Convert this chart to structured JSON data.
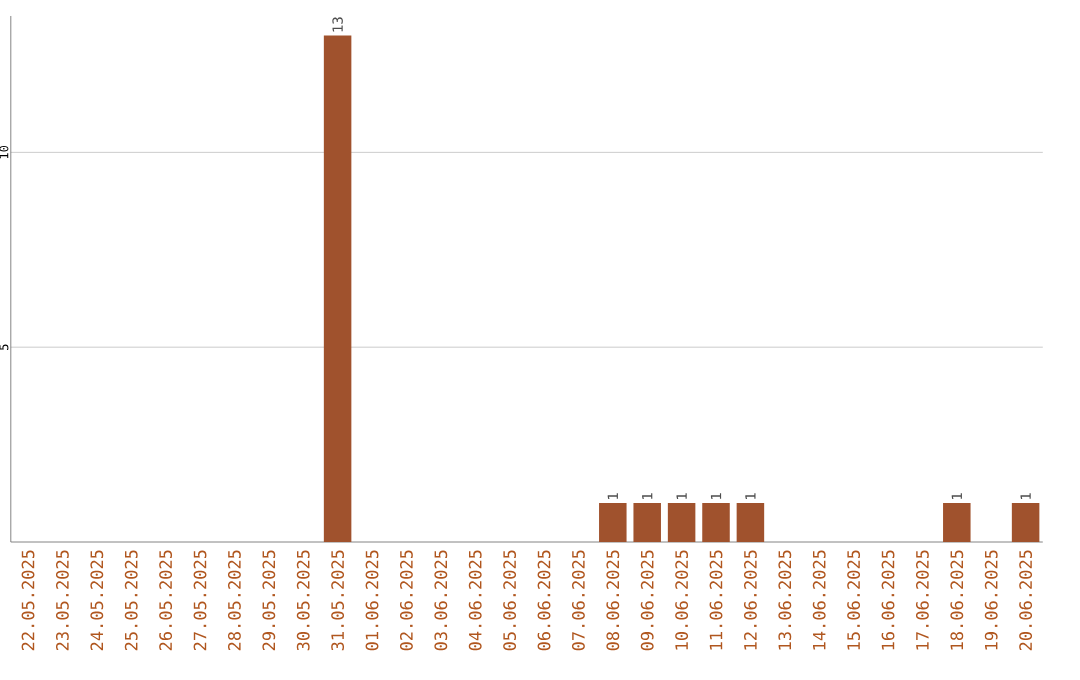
{
  "chart_data": {
    "type": "bar",
    "categories": [
      "22.05.2025",
      "23.05.2025",
      "24.05.2025",
      "25.05.2025",
      "26.05.2025",
      "27.05.2025",
      "28.05.2025",
      "29.05.2025",
      "30.05.2025",
      "31.05.2025",
      "01.06.2025",
      "02.06.2025",
      "03.06.2025",
      "04.06.2025",
      "05.06.2025",
      "06.06.2025",
      "07.06.2025",
      "08.06.2025",
      "09.06.2025",
      "10.06.2025",
      "11.06.2025",
      "12.06.2025",
      "13.06.2025",
      "14.06.2025",
      "15.06.2025",
      "16.06.2025",
      "17.06.2025",
      "18.06.2025",
      "19.06.2025",
      "20.06.2025"
    ],
    "values": [
      0,
      0,
      0,
      0,
      0,
      0,
      0,
      0,
      0,
      13,
      0,
      0,
      0,
      0,
      0,
      0,
      0,
      1,
      1,
      1,
      1,
      1,
      0,
      0,
      0,
      0,
      0,
      1,
      0,
      1
    ],
    "value_labels": [
      null,
      null,
      null,
      null,
      null,
      null,
      null,
      null,
      null,
      "13",
      null,
      null,
      null,
      null,
      null,
      null,
      null,
      "1",
      "1",
      "1",
      "1",
      "1",
      null,
      null,
      null,
      null,
      null,
      "1",
      null,
      "1"
    ],
    "color": "#a0522d",
    "ylim": [
      0,
      13.5
    ],
    "yticks": [
      5,
      10
    ],
    "grid": "y"
  }
}
